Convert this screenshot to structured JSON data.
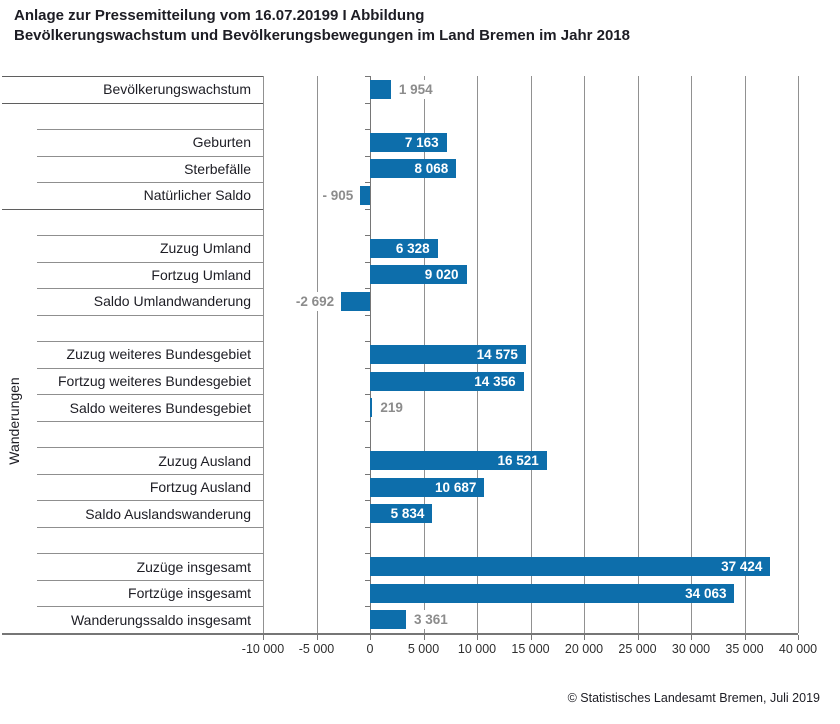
{
  "header": {
    "title_line1": "Anlage zur Pressemitteilung vom 16.07.20199 I Abbildung",
    "title_line2": "Bevölkerungswachstum und Bevölkerungsbewegungen im Land Bremen im Jahr 2018"
  },
  "footer": {
    "credit": "© Statistisches Landesamt Bremen, Juli 2019"
  },
  "chart_data": {
    "type": "bar",
    "orientation": "horizontal",
    "title": "Bevölkerungswachstum und Bevölkerungsbewegungen im Land Bremen im Jahr 2018",
    "bar_color": "#0d6eab",
    "value_label_inside_color": "#ffffff",
    "value_label_outside_color": "#8c8c8c",
    "grid": true,
    "legend": "none",
    "y_group_label": "Wanderungen",
    "x_axis": {
      "min": -10000,
      "max": 40000,
      "tick_step": 5000,
      "tick_labels": [
        "-10 000",
        "-5 000",
        "0",
        "5 000",
        "10 000",
        "15 000",
        "20 000",
        "25 000",
        "30 000",
        "35 000",
        "40 000"
      ]
    },
    "rows": [
      {
        "label": "Bevölkerungswachstum",
        "value": 1954,
        "value_label": "1 954",
        "label_placement": "outside"
      },
      {
        "gap": true
      },
      {
        "label": "Geburten",
        "value": 7163,
        "value_label": "7 163",
        "label_placement": "inside"
      },
      {
        "label": "Sterbefälle",
        "value": 8068,
        "value_label": "8 068",
        "label_placement": "inside"
      },
      {
        "label": "Natürlicher Saldo",
        "value": -905,
        "value_label": "- 905",
        "label_placement": "outside"
      },
      {
        "gap": true
      },
      {
        "label": "Zuzug Umland",
        "value": 6328,
        "value_label": "6 328",
        "label_placement": "inside"
      },
      {
        "label": "Fortzug Umland",
        "value": 9020,
        "value_label": "9 020",
        "label_placement": "inside"
      },
      {
        "label": "Saldo Umlandwanderung",
        "value": -2692,
        "value_label": "-2 692",
        "label_placement": "outside"
      },
      {
        "gap": true
      },
      {
        "label": "Zuzug weiteres Bundesgebiet",
        "value": 14575,
        "value_label": "14 575",
        "label_placement": "inside"
      },
      {
        "label": "Fortzug weiteres Bundesgebiet",
        "value": 14356,
        "value_label": "14 356",
        "label_placement": "inside"
      },
      {
        "label": "Saldo weiteres Bundesgebiet",
        "value": 219,
        "value_label": "219",
        "label_placement": "outside"
      },
      {
        "gap": true
      },
      {
        "label": "Zuzug Ausland",
        "value": 16521,
        "value_label": "16 521",
        "label_placement": "inside"
      },
      {
        "label": "Fortzug Ausland",
        "value": 10687,
        "value_label": "10 687",
        "label_placement": "inside"
      },
      {
        "label": "Saldo Auslandswanderung",
        "value": 5834,
        "value_label": "5 834",
        "label_placement": "inside"
      },
      {
        "gap": true
      },
      {
        "label": "Zuzüge insgesamt",
        "value": 37424,
        "value_label": "37 424",
        "label_placement": "inside"
      },
      {
        "label": "Fortzüge insgesamt",
        "value": 34063,
        "value_label": "34 063",
        "label_placement": "inside"
      },
      {
        "label": "Wanderungssaldo insgesamt",
        "value": 3361,
        "value_label": "3 361",
        "label_placement": "outside"
      }
    ]
  }
}
